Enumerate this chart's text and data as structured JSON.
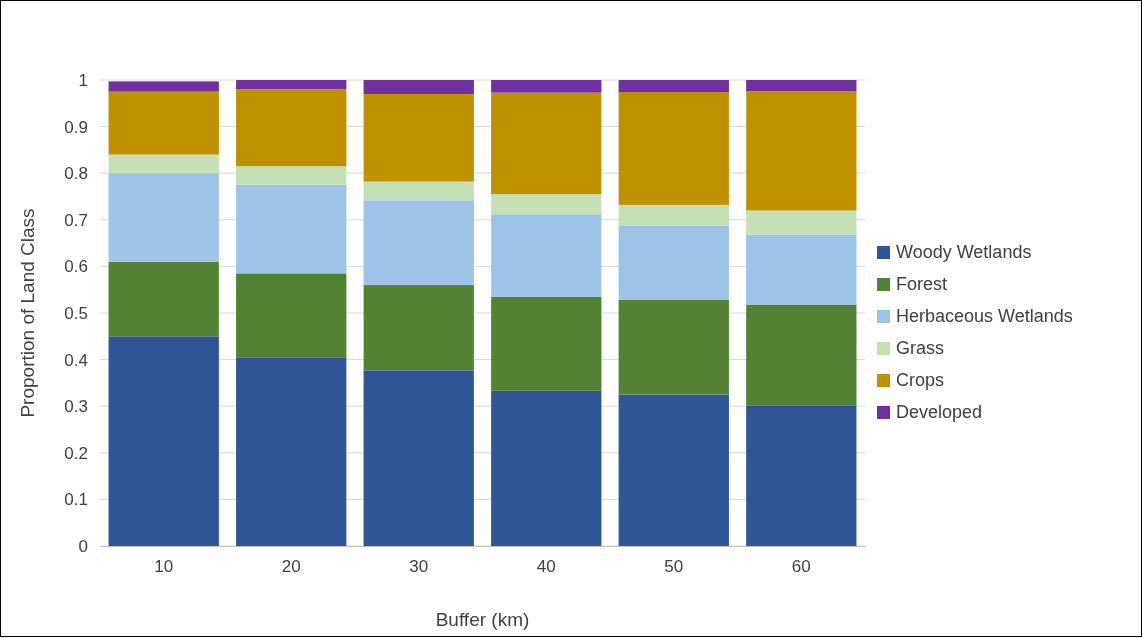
{
  "chart_data": {
    "type": "bar",
    "stacked": true,
    "xlabel": "Buffer (km)",
    "ylabel": "Proportion of Land Class",
    "categories": [
      "10",
      "20",
      "30",
      "40",
      "50",
      "60"
    ],
    "series": [
      {
        "name": "Woody Wetlands",
        "color": "#2f5597",
        "values": [
          0.45,
          0.405,
          0.377,
          0.333,
          0.325,
          0.302
        ]
      },
      {
        "name": "Forest",
        "color": "#548235",
        "values": [
          0.16,
          0.18,
          0.183,
          0.202,
          0.203,
          0.216
        ]
      },
      {
        "name": "Herbaceous Wetlands",
        "color": "#9dc3e6",
        "values": [
          0.19,
          0.19,
          0.182,
          0.177,
          0.159,
          0.15
        ]
      },
      {
        "name": "Grass",
        "color": "#c5e0b4",
        "values": [
          0.04,
          0.04,
          0.04,
          0.043,
          0.045,
          0.052
        ]
      },
      {
        "name": "Crops",
        "color": "#bf9000",
        "values": [
          0.135,
          0.165,
          0.188,
          0.218,
          0.242,
          0.256
        ]
      },
      {
        "name": "Developed",
        "color": "#7030a0",
        "values": [
          0.022,
          0.02,
          0.03,
          0.027,
          0.026,
          0.024
        ]
      }
    ],
    "ylim": [
      0,
      1
    ],
    "yticks": [
      0,
      0.1,
      0.2,
      0.3,
      0.4,
      0.5,
      0.6,
      0.7,
      0.8,
      0.9,
      1
    ],
    "grid": "y",
    "legend": "right"
  }
}
